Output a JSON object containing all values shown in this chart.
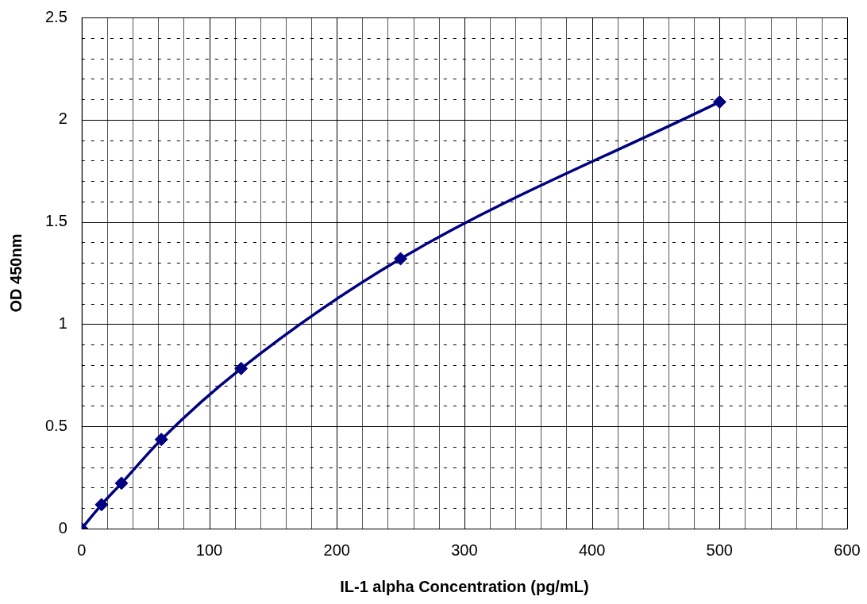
{
  "chart_data": {
    "type": "line",
    "xlabel": "IL-1 alpha Concentration (pg/mL)",
    "ylabel": "OD 450nm",
    "x": [
      0,
      15.6,
      31.25,
      62.5,
      125,
      250,
      500
    ],
    "series": [
      {
        "color": "#000080",
        "values": [
          0,
          0.117,
          0.222,
          0.436,
          0.783,
          1.32,
          2.087
        ]
      }
    ],
    "xlim": [
      0,
      600
    ],
    "xticks": [
      0,
      {
        "value": 20,
        "label": null
      },
      {
        "value": 40,
        "label": null
      },
      {
        "value": 60,
        "label": null
      },
      {
        "value": 80,
        "label": null
      },
      100,
      {
        "value": 120,
        "label": null
      },
      {
        "value": 140,
        "label": null
      },
      {
        "value": 160,
        "label": null
      },
      {
        "value": 180,
        "label": null
      },
      200,
      {
        "value": 220,
        "label": null
      },
      {
        "value": 240,
        "label": null
      },
      {
        "value": 260,
        "label": null
      },
      {
        "value": 280,
        "label": null
      },
      300,
      {
        "value": 320,
        "label": null
      },
      {
        "value": 340,
        "label": null
      },
      {
        "value": 360,
        "label": null
      },
      {
        "value": 380,
        "label": null
      },
      400,
      {
        "value": 420,
        "label": null
      },
      {
        "value": 440,
        "label": null
      },
      {
        "value": 460,
        "label": null
      },
      {
        "value": 480,
        "label": null
      },
      500,
      {
        "value": 520,
        "label": null
      },
      {
        "value": 540,
        "label": null
      },
      {
        "value": 560,
        "label": null
      },
      {
        "value": 580,
        "label": null
      },
      600
    ],
    "ylim": [
      0,
      2.5
    ],
    "yticks": [
      0,
      {
        "value": 0.1,
        "label": null
      },
      {
        "value": 0.2,
        "label": null
      },
      {
        "value": 0.3,
        "label": null
      },
      {
        "value": 0.4,
        "label": null
      },
      0.5,
      {
        "value": 0.6,
        "label": null
      },
      {
        "value": 0.7,
        "label": null
      },
      {
        "value": 0.8,
        "label": null
      },
      {
        "value": 0.9,
        "label": null
      },
      1,
      {
        "value": 1.1,
        "label": null
      },
      {
        "value": 1.2,
        "label": null
      },
      {
        "value": 1.3,
        "label": null
      },
      {
        "value": 1.4,
        "label": null
      },
      1.5,
      {
        "value": 1.6,
        "label": null
      },
      {
        "value": 1.7,
        "label": null
      },
      {
        "value": 1.8,
        "label": null
      },
      {
        "value": 1.9,
        "label": null
      },
      2,
      {
        "value": 2.1,
        "label": null
      },
      {
        "value": 2.2,
        "label": null
      },
      {
        "value": 2.3,
        "label": null
      },
      {
        "value": 2.4,
        "label": null
      },
      2.5
    ],
    "grid": true,
    "legend": false,
    "marker": "diamond",
    "line_style": "solid"
  }
}
